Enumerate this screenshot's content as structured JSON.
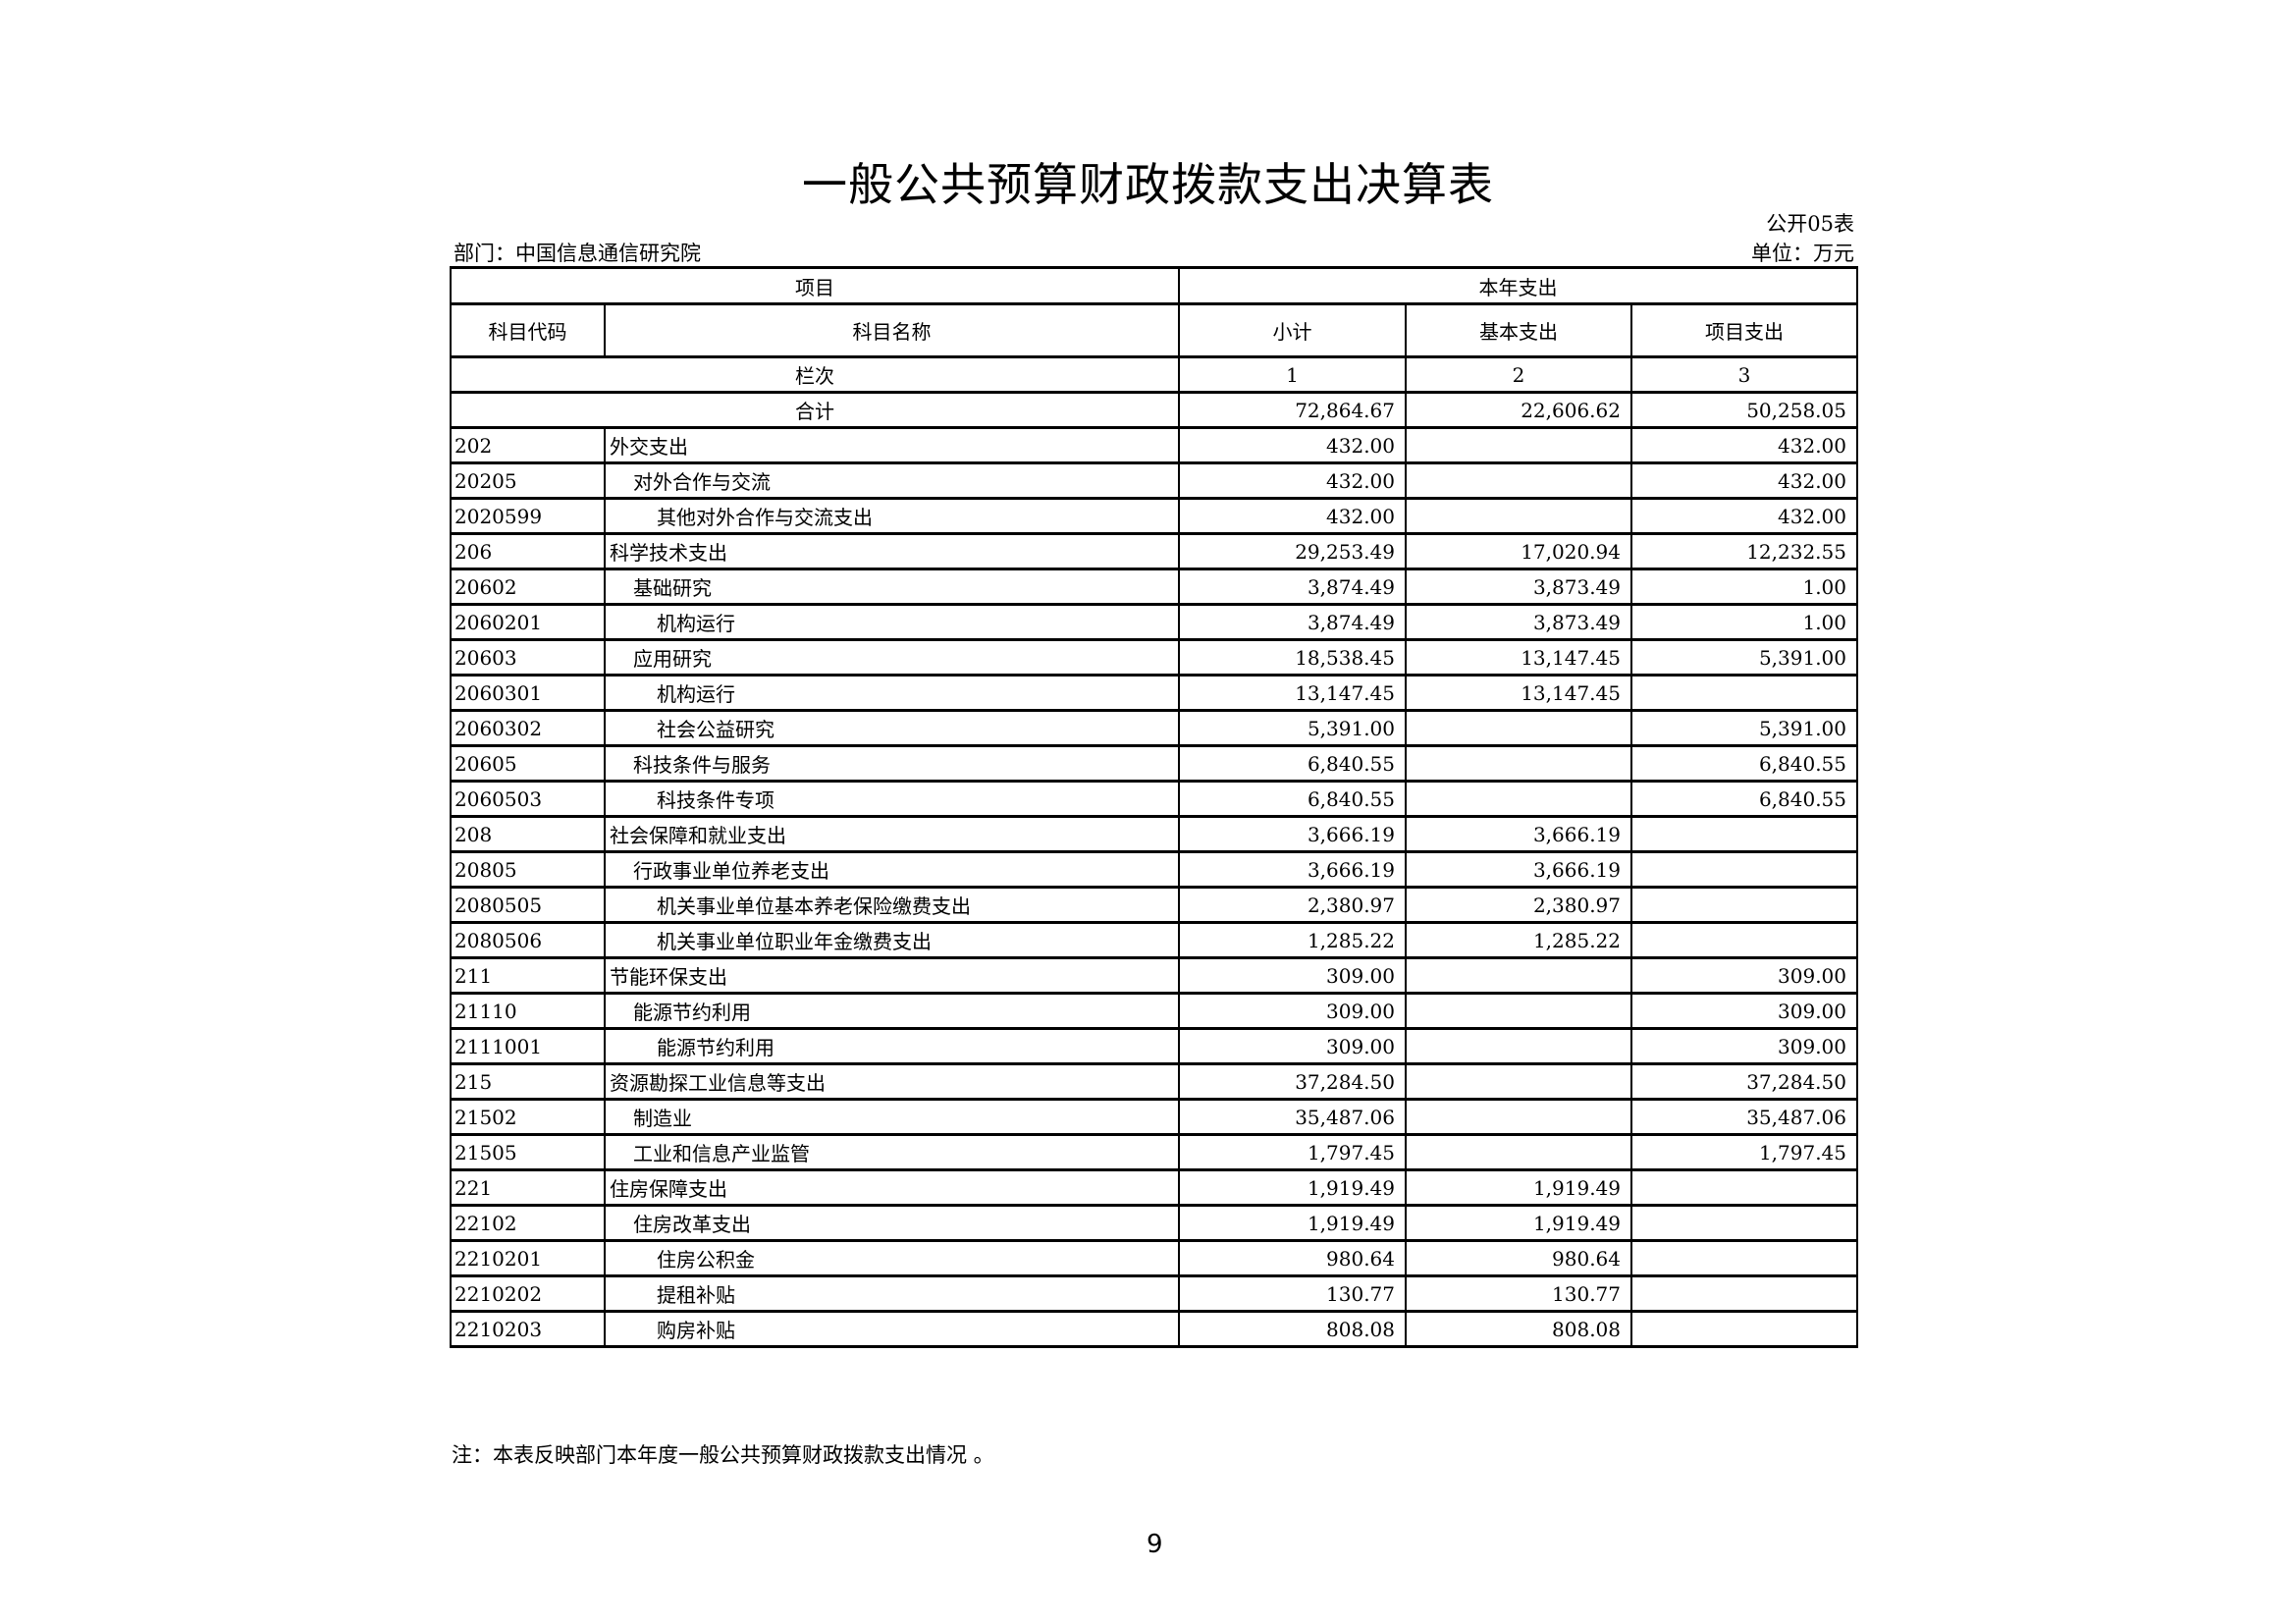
{
  "title": "一般公共预算财政拨款支出决算表",
  "form_no": "公开05表",
  "department": "部门：中国信息通信研究院",
  "unit": "单位：万元",
  "header": {
    "project": "项目",
    "current_year": "本年支出",
    "code": "科目代码",
    "name": "科目名称",
    "subtotal": "小计",
    "basic": "基本支出",
    "project_exp": "项目支出",
    "column_order": "栏次",
    "col1": "1",
    "col2": "2",
    "col3": "3"
  },
  "total": {
    "label": "合计",
    "subtotal": "72,864.67",
    "basic": "22,606.62",
    "project": "50,258.05"
  },
  "rows": [
    {
      "code": "202",
      "name": "外交支出",
      "level": 0,
      "subtotal": "432.00",
      "basic": "",
      "project": "432.00"
    },
    {
      "code": "20205",
      "name": "对外合作与交流",
      "level": 1,
      "subtotal": "432.00",
      "basic": "",
      "project": "432.00"
    },
    {
      "code": "2020599",
      "name": "其他对外合作与交流支出",
      "level": 2,
      "subtotal": "432.00",
      "basic": "",
      "project": "432.00"
    },
    {
      "code": "206",
      "name": "科学技术支出",
      "level": 0,
      "subtotal": "29,253.49",
      "basic": "17,020.94",
      "project": "12,232.55"
    },
    {
      "code": "20602",
      "name": "基础研究",
      "level": 1,
      "subtotal": "3,874.49",
      "basic": "3,873.49",
      "project": "1.00"
    },
    {
      "code": "2060201",
      "name": "机构运行",
      "level": 2,
      "subtotal": "3,874.49",
      "basic": "3,873.49",
      "project": "1.00"
    },
    {
      "code": "20603",
      "name": "应用研究",
      "level": 1,
      "subtotal": "18,538.45",
      "basic": "13,147.45",
      "project": "5,391.00"
    },
    {
      "code": "2060301",
      "name": "机构运行",
      "level": 2,
      "subtotal": "13,147.45",
      "basic": "13,147.45",
      "project": ""
    },
    {
      "code": "2060302",
      "name": "社会公益研究",
      "level": 2,
      "subtotal": "5,391.00",
      "basic": "",
      "project": "5,391.00"
    },
    {
      "code": "20605",
      "name": "科技条件与服务",
      "level": 1,
      "subtotal": "6,840.55",
      "basic": "",
      "project": "6,840.55"
    },
    {
      "code": "2060503",
      "name": "科技条件专项",
      "level": 2,
      "subtotal": "6,840.55",
      "basic": "",
      "project": "6,840.55"
    },
    {
      "code": "208",
      "name": "社会保障和就业支出",
      "level": 0,
      "subtotal": "3,666.19",
      "basic": "3,666.19",
      "project": ""
    },
    {
      "code": "20805",
      "name": "行政事业单位养老支出",
      "level": 1,
      "subtotal": "3,666.19",
      "basic": "3,666.19",
      "project": ""
    },
    {
      "code": "2080505",
      "name": "机关事业单位基本养老保险缴费支出",
      "level": 2,
      "subtotal": "2,380.97",
      "basic": "2,380.97",
      "project": ""
    },
    {
      "code": "2080506",
      "name": "机关事业单位职业年金缴费支出",
      "level": 2,
      "subtotal": "1,285.22",
      "basic": "1,285.22",
      "project": ""
    },
    {
      "code": "211",
      "name": "节能环保支出",
      "level": 0,
      "subtotal": "309.00",
      "basic": "",
      "project": "309.00"
    },
    {
      "code": "21110",
      "name": "能源节约利用",
      "level": 1,
      "subtotal": "309.00",
      "basic": "",
      "project": "309.00"
    },
    {
      "code": "2111001",
      "name": "能源节约利用",
      "level": 2,
      "subtotal": "309.00",
      "basic": "",
      "project": "309.00"
    },
    {
      "code": "215",
      "name": "资源勘探工业信息等支出",
      "level": 0,
      "subtotal": "37,284.50",
      "basic": "",
      "project": "37,284.50"
    },
    {
      "code": "21502",
      "name": "制造业",
      "level": 1,
      "subtotal": "35,487.06",
      "basic": "",
      "project": "35,487.06"
    },
    {
      "code": "21505",
      "name": "工业和信息产业监管",
      "level": 1,
      "subtotal": "1,797.45",
      "basic": "",
      "project": "1,797.45"
    },
    {
      "code": "221",
      "name": "住房保障支出",
      "level": 0,
      "subtotal": "1,919.49",
      "basic": "1,919.49",
      "project": ""
    },
    {
      "code": "22102",
      "name": "住房改革支出",
      "level": 1,
      "subtotal": "1,919.49",
      "basic": "1,919.49",
      "project": ""
    },
    {
      "code": "2210201",
      "name": "住房公积金",
      "level": 2,
      "subtotal": "980.64",
      "basic": "980.64",
      "project": ""
    },
    {
      "code": "2210202",
      "name": "提租补贴",
      "level": 2,
      "subtotal": "130.77",
      "basic": "130.77",
      "project": ""
    },
    {
      "code": "2210203",
      "name": "购房补贴",
      "level": 2,
      "subtotal": "808.08",
      "basic": "808.08",
      "project": ""
    }
  ],
  "note": "注：本表反映部门本年度一般公共预算财政拨款支出情况 。",
  "page_number": "9"
}
